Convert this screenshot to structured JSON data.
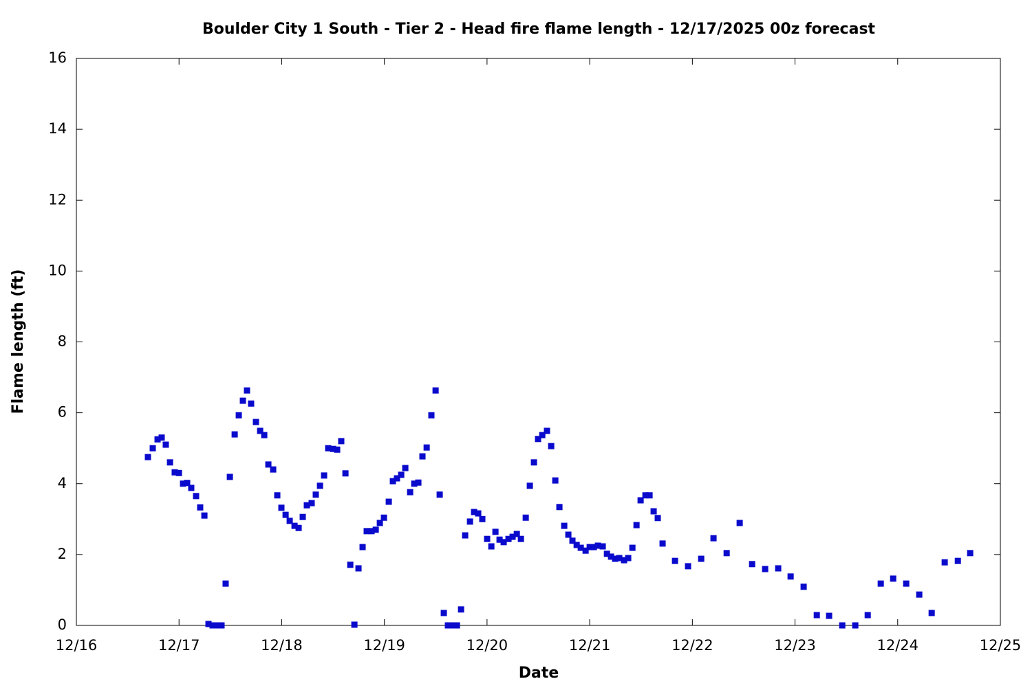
{
  "chart_data": {
    "type": "scatter",
    "title": "Boulder City 1 South - Tier 2 - Head fire flame length - 12/17/2025 00z forecast",
    "x_label": "Date",
    "y_label": "Flame length (ft)",
    "series": [
      {
        "color": "#0a0acc",
        "x": [
          16.697,
          16.744,
          16.791,
          16.831,
          16.871,
          16.912,
          16.958,
          16.999,
          17.039,
          17.079,
          17.119,
          17.166,
          17.206,
          17.247,
          17.287,
          17.327,
          17.374,
          17.414,
          17.454,
          17.495,
          17.542,
          17.582,
          17.622,
          17.662,
          17.702,
          17.749,
          17.79,
          17.83,
          17.87,
          17.917,
          17.957,
          17.997,
          18.038,
          18.078,
          18.125,
          18.165,
          18.205,
          18.245,
          18.292,
          18.332,
          18.373,
          18.413,
          18.453,
          18.5,
          18.54,
          18.58,
          18.621,
          18.668,
          18.708,
          18.748,
          18.788,
          18.828,
          18.875,
          18.916,
          18.956,
          18.996,
          19.043,
          19.083,
          19.123,
          19.164,
          19.204,
          19.251,
          19.291,
          19.331,
          19.371,
          19.412,
          19.458,
          19.499,
          19.539,
          19.579,
          19.619,
          19.66,
          19.707,
          19.747,
          19.787,
          19.834,
          19.874,
          19.914,
          19.954,
          20.001,
          20.042,
          20.082,
          20.122,
          20.162,
          20.209,
          20.249,
          20.29,
          20.33,
          20.377,
          20.417,
          20.457,
          20.497,
          20.538,
          20.584,
          20.625,
          20.665,
          20.705,
          20.752,
          20.792,
          20.832,
          20.873,
          20.913,
          20.96,
          21.0,
          21.04,
          21.08,
          21.127,
          21.168,
          21.208,
          21.248,
          21.288,
          21.335,
          21.375,
          21.416,
          21.456,
          21.496,
          21.543,
          21.583,
          21.623,
          21.663,
          21.71,
          21.831,
          21.958,
          22.086,
          22.206,
          22.334,
          22.461,
          22.582,
          22.709,
          22.836,
          22.957,
          23.084,
          23.212,
          23.332,
          23.46,
          23.587,
          23.708,
          23.835,
          23.956,
          24.083,
          24.21,
          24.331,
          24.458,
          24.586,
          24.706
        ],
        "values": [
          4.75,
          5.0,
          5.25,
          5.3,
          5.1,
          4.6,
          4.32,
          4.3,
          4.0,
          4.02,
          3.88,
          3.65,
          3.33,
          3.1,
          0.04,
          0,
          0,
          0,
          1.18,
          4.19,
          5.39,
          5.93,
          6.34,
          6.63,
          6.26,
          5.74,
          5.49,
          5.37,
          4.54,
          4.4,
          3.67,
          3.32,
          3.12,
          2.95,
          2.81,
          2.75,
          3.06,
          3.39,
          3.45,
          3.69,
          3.94,
          4.23,
          5.0,
          4.98,
          4.96,
          5.2,
          4.29,
          1.71,
          0.02,
          1.61,
          2.21,
          2.66,
          2.66,
          2.7,
          2.89,
          3.04,
          3.49,
          4.07,
          4.15,
          4.25,
          4.44,
          3.76,
          4.0,
          4.03,
          4.77,
          5.02,
          5.93,
          6.63,
          3.69,
          0.35,
          0,
          0,
          0,
          0.45,
          2.54,
          2.93,
          3.2,
          3.16,
          3.0,
          2.44,
          2.23,
          2.64,
          2.42,
          2.35,
          2.44,
          2.5,
          2.58,
          2.44,
          3.04,
          3.94,
          4.6,
          5.26,
          5.37,
          5.49,
          5.06,
          4.09,
          3.34,
          2.81,
          2.56,
          2.39,
          2.27,
          2.19,
          2.11,
          2.21,
          2.21,
          2.25,
          2.23,
          2.02,
          1.94,
          1.88,
          1.9,
          1.84,
          1.9,
          2.19,
          2.83,
          3.53,
          3.67,
          3.67,
          3.22,
          3.03,
          2.31,
          1.82,
          1.67,
          1.88,
          2.46,
          2.04,
          2.89,
          1.73,
          1.59,
          1.61,
          1.38,
          1.09,
          0.29,
          0.27,
          0,
          0,
          0.29,
          1.18,
          1.32,
          1.18,
          0.87,
          0.35,
          1.78,
          1.82,
          2.04
        ]
      }
    ],
    "xlim": [
      16,
      25
    ],
    "xticks": [
      {
        "value": 16,
        "label": "12/16"
      },
      {
        "value": 17,
        "label": "12/17"
      },
      {
        "value": 18,
        "label": "12/18"
      },
      {
        "value": 19,
        "label": "12/19"
      },
      {
        "value": 20,
        "label": "12/20"
      },
      {
        "value": 21,
        "label": "12/21"
      },
      {
        "value": 22,
        "label": "12/22"
      },
      {
        "value": 23,
        "label": "12/23"
      },
      {
        "value": 24,
        "label": "12/24"
      },
      {
        "value": 25,
        "label": "12/25"
      }
    ],
    "ylim": [
      0,
      16
    ],
    "yticks": [
      0,
      2,
      4,
      6,
      8,
      10,
      12,
      14,
      16
    ]
  }
}
